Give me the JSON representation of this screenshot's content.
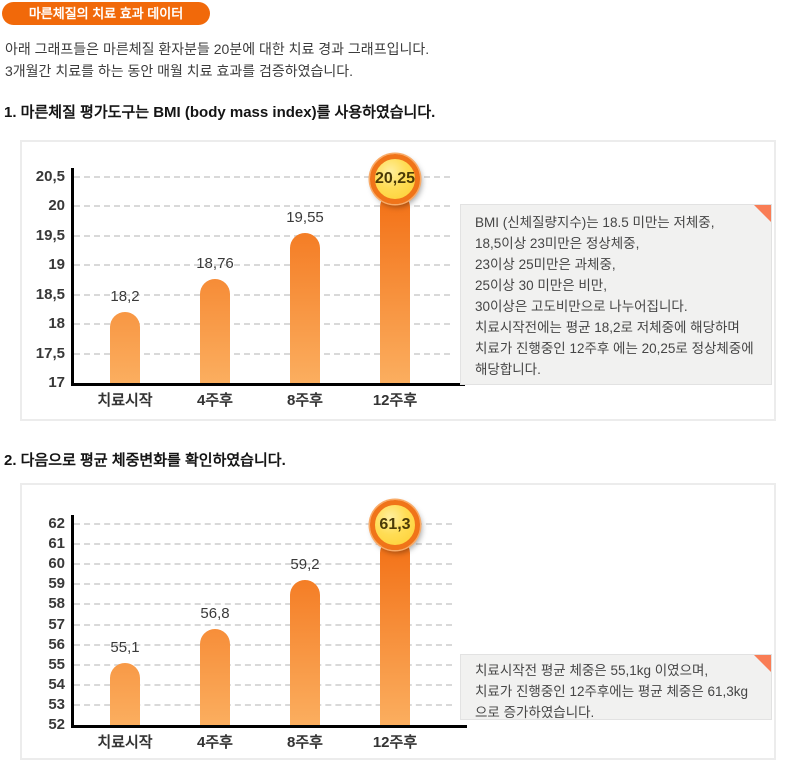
{
  "page": {
    "title_badge": "마른체질의 치료 효과 데이터",
    "intro_line1": "아래 그래프들은 마른체질 환자분들 20분에 대한 치료 경과 그래프입니다.",
    "intro_line2": "3개월간 치료를 하는 동안 매월 치료 효과를 검증하였습니다."
  },
  "sections": [
    {
      "heading": "1. 마른체질 평가도구는 BMI (body mass index)를 사용하였습니다.",
      "note_lines": [
        "BMI (신체질량지수)는 18.5 미만는 저체중,",
        "18,5이상 23미만은 정상체중,",
        "23이상 25미만은 과체중,",
        "25이상 30 미만은 비만,",
        "30이상은 고도비만으로 나누어집니다.",
        "치료시작전에는 평균 18,2로 저체중에 해당하며",
        "치료가 진행중인 12주후 에는 20,25로 정상체중에",
        "해당합니다."
      ]
    },
    {
      "heading": "2. 다음으로 평균 체중변화를 확인하였습니다.",
      "note_lines": [
        "치료시작전 평균 체중은 55,1kg 이였으며,",
        "치료가 진행중인 12주후에는 평균 체중은 61,3kg",
        "으로 증가하였습니다."
      ]
    }
  ],
  "chart_data": [
    {
      "type": "bar",
      "title": "",
      "xlabel": "",
      "ylabel": "",
      "categories": [
        "치료시작",
        "4주후",
        "8주후",
        "12주후"
      ],
      "values": [
        18.2,
        18.76,
        19.55,
        20.25
      ],
      "value_labels": [
        "18,2",
        "18,76",
        "19,55",
        "20,25"
      ],
      "badge_label": "20,25",
      "ylim": [
        17,
        20.5
      ],
      "ytick_step": 0.5,
      "ytick_labels": [
        "20,5",
        "20",
        "19,5",
        "19",
        "18,5",
        "18",
        "17,5",
        "17"
      ],
      "grid": "dashed-horizontal",
      "legend": "none"
    },
    {
      "type": "bar",
      "title": "",
      "xlabel": "",
      "ylabel": "",
      "categories": [
        "치료시작",
        "4주후",
        "8주후",
        "12주후"
      ],
      "values": [
        55.1,
        56.8,
        59.2,
        61.3
      ],
      "value_labels": [
        "55,1",
        "56,8",
        "59,2",
        "61,3"
      ],
      "badge_label": "61,3",
      "ylim": [
        52,
        62
      ],
      "ytick_step": 1,
      "ytick_labels": [
        "62",
        "61",
        "60",
        "59",
        "58",
        "57",
        "56",
        "55",
        "54",
        "53",
        "52"
      ],
      "grid": "dashed-horizontal",
      "legend": "none"
    }
  ],
  "colors": {
    "title_badge_bg": "#f1690a",
    "bar_gradient_top": "#f1660a",
    "bar_gradient_bottom": "#fbae5f",
    "badge_fill": "#ffd948",
    "badge_ring": "#f07419",
    "note_box_bg": "#f1f1f0",
    "note_corner": "#f97d55",
    "axis": "#000000",
    "gridline": "#d9d9d9"
  }
}
